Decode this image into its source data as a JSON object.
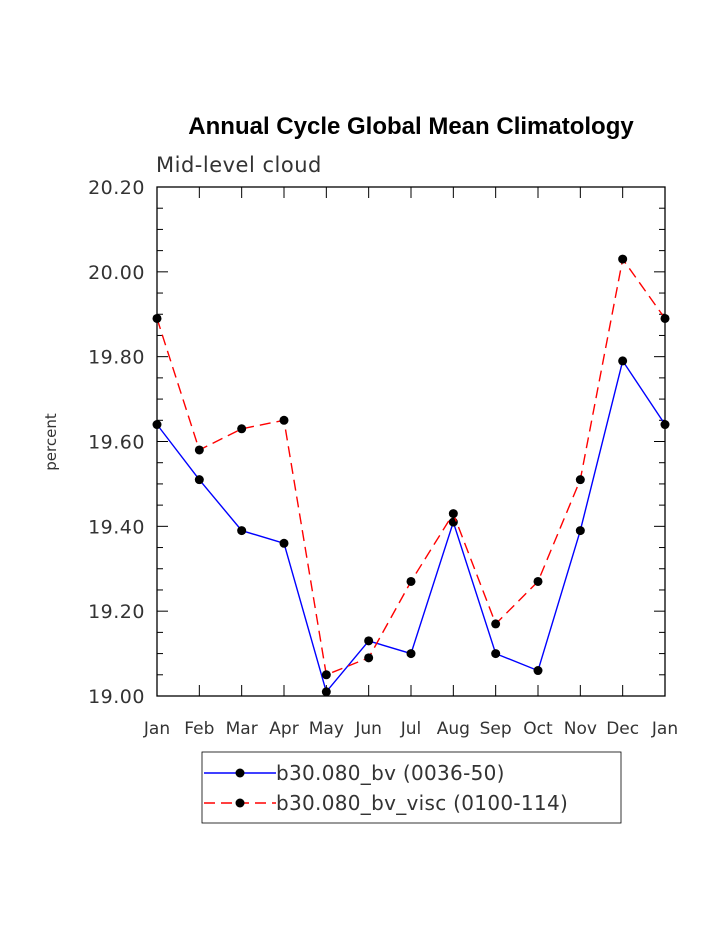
{
  "chart_data": {
    "type": "line",
    "title": "Annual Cycle Global Mean Climatology",
    "subtitle": "Mid-level cloud",
    "ylabel": "percent",
    "xlabel": "",
    "ylim": [
      19.0,
      20.2
    ],
    "yticks": [
      "19.00",
      "19.20",
      "19.40",
      "19.60",
      "19.80",
      "20.00",
      "20.20"
    ],
    "categories": [
      "Jan",
      "Feb",
      "Mar",
      "Apr",
      "May",
      "Jun",
      "Jul",
      "Aug",
      "Sep",
      "Oct",
      "Nov",
      "Dec",
      "Jan"
    ],
    "series": [
      {
        "name": "b30.080_bv (0036-50)",
        "color": "#0000ff",
        "dash": "solid",
        "values": [
          19.64,
          19.51,
          19.39,
          19.36,
          19.01,
          19.13,
          19.1,
          19.41,
          19.1,
          19.06,
          19.39,
          19.79,
          19.64
        ]
      },
      {
        "name": "b30.080_bv_visc (0100-114)",
        "color": "#ff0000",
        "dash": "dashed",
        "values": [
          19.89,
          19.58,
          19.63,
          19.65,
          19.05,
          19.09,
          19.27,
          19.43,
          19.17,
          19.27,
          19.51,
          20.03,
          19.89
        ]
      }
    ],
    "legend": "bottom"
  }
}
